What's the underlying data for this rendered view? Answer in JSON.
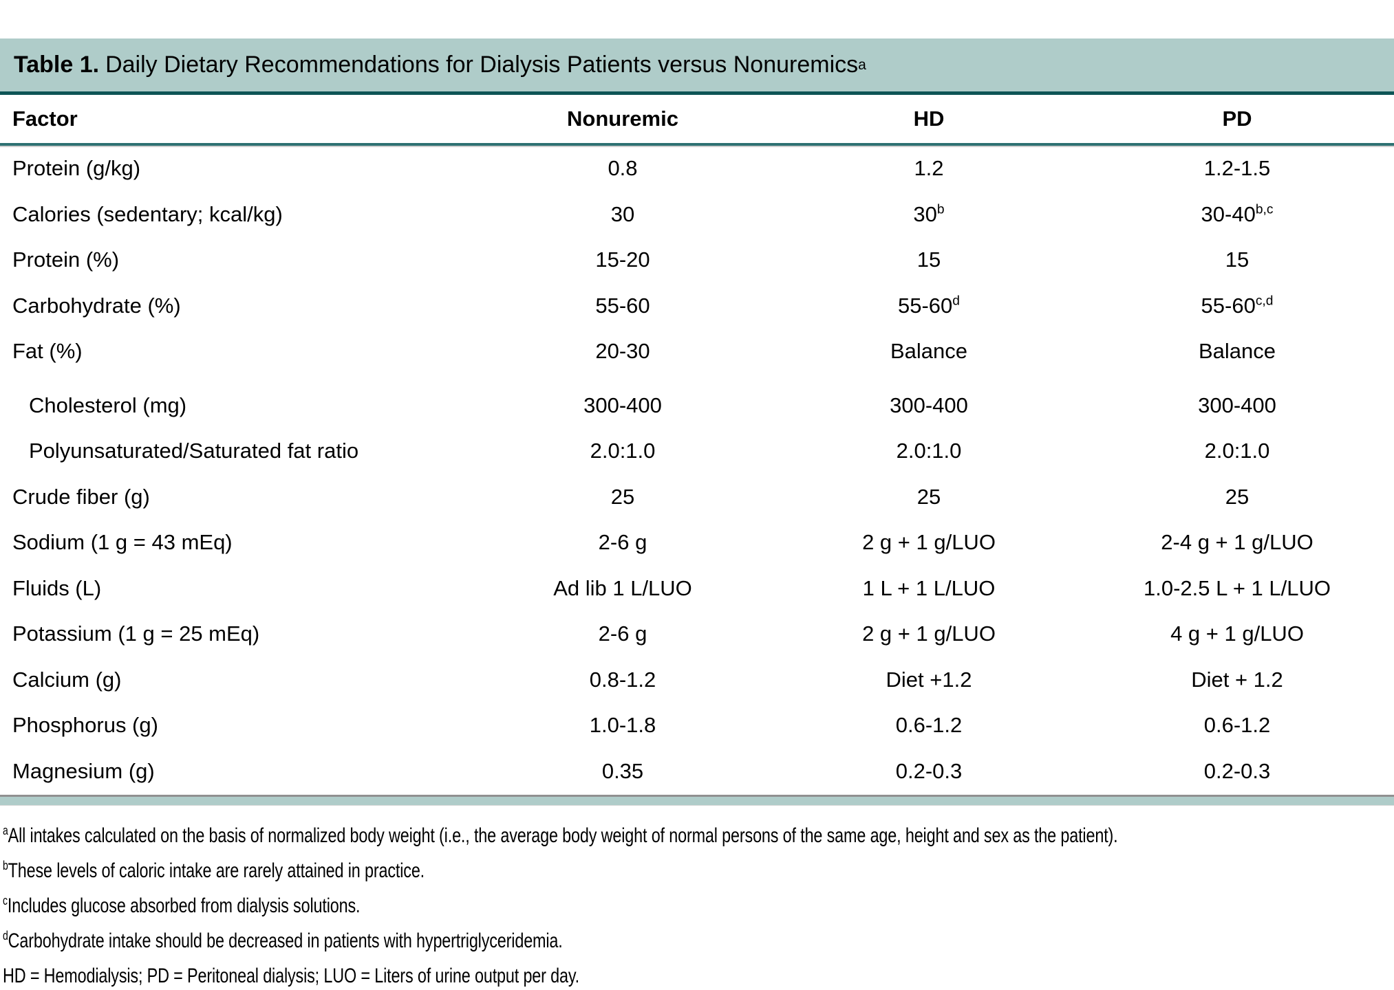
{
  "title": {
    "bold": "Table 1.",
    "rest": "Daily Dietary Recommendations for Dialysis Patients versus Nonuremics",
    "sup": "a"
  },
  "columns": {
    "factor": "Factor",
    "nonuremic": "Nonuremic",
    "hd": "HD",
    "pd": "PD"
  },
  "rows": [
    {
      "factor": {
        "text": "Protein (g/kg)"
      },
      "nonuremic": {
        "text": "0.8"
      },
      "hd": {
        "text": "1.2"
      },
      "pd": {
        "text": "1.2-1.5"
      }
    },
    {
      "factor": {
        "text": "Calories (sedentary; kcal/kg)"
      },
      "nonuremic": {
        "text": "30"
      },
      "hd": {
        "text": "30",
        "sup": "b"
      },
      "pd": {
        "text": "30-40",
        "sup": "b,c"
      }
    },
    {
      "factor": {
        "text": "Protein (%)"
      },
      "nonuremic": {
        "text": "15-20"
      },
      "hd": {
        "text": "15"
      },
      "pd": {
        "text": "15"
      }
    },
    {
      "factor": {
        "text": "Carbohydrate (%)"
      },
      "nonuremic": {
        "text": "55-60"
      },
      "hd": {
        "text": "55-60",
        "sup": "d"
      },
      "pd": {
        "text": "55-60",
        "sup": "c,d"
      }
    },
    {
      "factor": {
        "text": "Fat (%)"
      },
      "nonuremic": {
        "text": "20-30"
      },
      "hd": {
        "text": "Balance"
      },
      "pd": {
        "text": "Balance"
      }
    },
    {
      "factor": {
        "text": "Cholesterol (mg)"
      },
      "nonuremic": {
        "text": "300-400"
      },
      "hd": {
        "text": "300-400"
      },
      "pd": {
        "text": "300-400"
      }
    },
    {
      "factor": {
        "text": "Polyunsaturated/Saturated fat ratio"
      },
      "nonuremic": {
        "text": "2.0:1.0"
      },
      "hd": {
        "text": "2.0:1.0"
      },
      "pd": {
        "text": "2.0:1.0"
      }
    },
    {
      "factor": {
        "text": "Crude fiber (g)"
      },
      "nonuremic": {
        "text": "25"
      },
      "hd": {
        "text": "25"
      },
      "pd": {
        "text": "25"
      }
    },
    {
      "factor": {
        "text": "Sodium (1 g = 43 mEq)"
      },
      "nonuremic": {
        "text": "2-6 g"
      },
      "hd": {
        "text": "2 g + 1 g/LUO"
      },
      "pd": {
        "text": "2-4 g + 1 g/LUO"
      }
    },
    {
      "factor": {
        "text": "Fluids (L)"
      },
      "nonuremic": {
        "text": "Ad lib 1 L/LUO"
      },
      "hd": {
        "text": "1 L + 1 L/LUO"
      },
      "pd": {
        "text": "1.0-2.5 L + 1 L/LUO"
      }
    },
    {
      "factor": {
        "text": "Potassium (1 g = 25 mEq)"
      },
      "nonuremic": {
        "text": "2-6 g"
      },
      "hd": {
        "text": "2 g + 1 g/LUO"
      },
      "pd": {
        "text": "4 g + 1 g/LUO"
      }
    },
    {
      "factor": {
        "text": "Calcium (g)"
      },
      "nonuremic": {
        "text": "0.8-1.2"
      },
      "hd": {
        "text": "Diet +1.2"
      },
      "pd": {
        "text": "Diet + 1.2"
      }
    },
    {
      "factor": {
        "text": "Phosphorus (g)"
      },
      "nonuremic": {
        "text": "1.0-1.8"
      },
      "hd": {
        "text": "0.6-1.2"
      },
      "pd": {
        "text": "0.6-1.2"
      }
    },
    {
      "factor": {
        "text": "Magnesium (g)"
      },
      "nonuremic": {
        "text": "0.35"
      },
      "hd": {
        "text": "0.2-0.3"
      },
      "pd": {
        "text": "0.2-0.3"
      }
    }
  ],
  "footnotes": [
    {
      "sup": "a",
      "text": "All intakes calculated on the basis of normalized body weight (i.e., the average body weight of normal persons of the same age, height and sex as the patient)."
    },
    {
      "sup": "b",
      "text": "These levels of caloric intake are rarely attained in practice."
    },
    {
      "sup": "c",
      "text": "Includes glucose absorbed from dialysis solutions."
    },
    {
      "sup": "d",
      "text": "Carbohydrate intake should be decreased in patients with hypertriglyceridemia."
    },
    {
      "sup": "",
      "text": "HD = Hemodialysis; PD = Peritoneal dialysis; LUO = Liters of urine output per day."
    }
  ],
  "colors": {
    "band_teal": "#afccc9",
    "rule_dark_teal": "#0d5455",
    "rule_mid_teal": "#2e7172",
    "rule_gray": "#909090",
    "text": "#000000"
  }
}
